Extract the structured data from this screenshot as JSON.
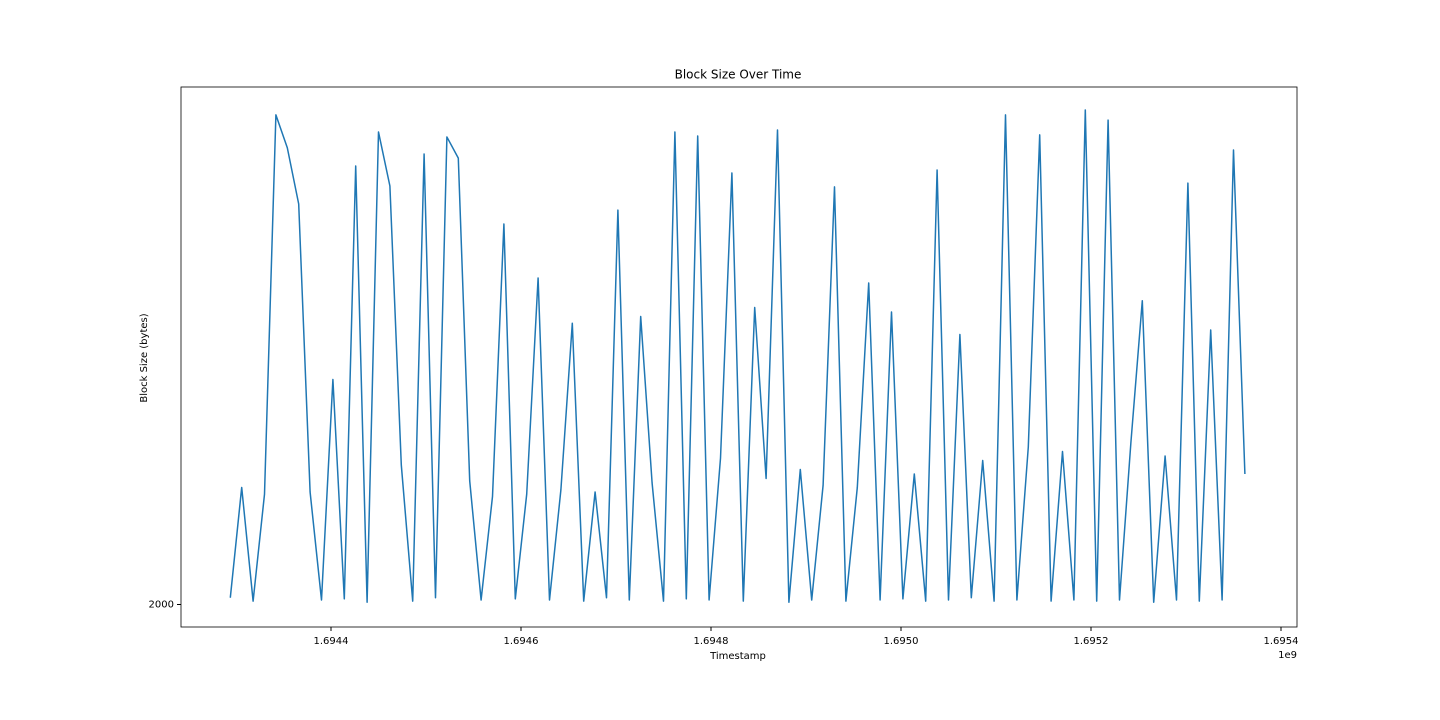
{
  "chart_data": {
    "type": "line",
    "title": "Block Size Over Time",
    "xlabel": "Timestamp",
    "ylabel": "Block Size (bytes)",
    "x_offset_label": "1e9",
    "x": [
      1694294000,
      1694306000,
      1694318000,
      1694330000,
      1694342000,
      1694354000,
      1694366000,
      1694378000,
      1694390000,
      1694402000,
      1694414000,
      1694426000,
      1694438000,
      1694450000,
      1694462000,
      1694474000,
      1694486000,
      1694498000,
      1694510000,
      1694522000,
      1694534000,
      1694546000,
      1694558000,
      1694570000,
      1694582000,
      1694594000,
      1694606000,
      1694618000,
      1694630000,
      1694642000,
      1694654000,
      1694666000,
      1694678000,
      1694690000,
      1694702000,
      1694714000,
      1694726000,
      1694738000,
      1694750000,
      1694762000,
      1694774000,
      1694786000,
      1694798000,
      1694810000,
      1694822000,
      1694834000,
      1694846000,
      1694858000,
      1694870000,
      1694882000,
      1694894000,
      1694906000,
      1694918000,
      1694930000,
      1694942000,
      1694954000,
      1694966000,
      1694978000,
      1694990000,
      1695002000,
      1695014000,
      1695026000,
      1695038000,
      1695050000,
      1695062000,
      1695074000,
      1695086000,
      1695098000,
      1695110000,
      1695122000,
      1695134000,
      1695146000,
      1695158000,
      1695170000,
      1695182000,
      1695194000,
      1695206000,
      1695218000,
      1695230000,
      1695242000,
      1695254000,
      1695266000,
      1695278000,
      1695290000,
      1695302000,
      1695314000,
      1695326000,
      1695338000,
      1695350000,
      1695362000
    ],
    "values": [
      2300,
      7200,
      2150,
      6900,
      23760,
      22300,
      19800,
      7000,
      2200,
      12000,
      2250,
      21490,
      2100,
      23000,
      20600,
      8200,
      2150,
      22020,
      2300,
      22780,
      21840,
      7500,
      2200,
      6800,
      18910,
      2250,
      6900,
      16510,
      2200,
      7100,
      14500,
      2150,
      7000,
      2300,
      19530,
      2200,
      14800,
      7400,
      2150,
      23000,
      2250,
      22820,
      2200,
      8500,
      21180,
      2150,
      15200,
      7600,
      23090,
      2100,
      8000,
      2200,
      7300,
      20560,
      2150,
      7200,
      16290,
      2200,
      15000,
      2250,
      7800,
      2150,
      21310,
      2200,
      14000,
      2300,
      8400,
      2150,
      23760,
      2200,
      9000,
      22870,
      2150,
      8800,
      2200,
      23980,
      2150,
      23530,
      2200,
      9200,
      15500,
      2100,
      8600,
      2200,
      20730,
      2150,
      14200,
      2200,
      22200,
      7800
    ],
    "color": "#1f77b4",
    "xlim": [
      1694242105,
      1695416842
    ],
    "xticks": [
      {
        "value": 1694400000,
        "label": "1.6944"
      },
      {
        "value": 1694600000,
        "label": "1.6946"
      },
      {
        "value": 1694800000,
        "label": "1.6948"
      },
      {
        "value": 1695000000,
        "label": "1.6950"
      },
      {
        "value": 1695200000,
        "label": "1.6952"
      },
      {
        "value": 1695400000,
        "label": "1.6954"
      }
    ],
    "ylim": [
      1000,
      25000
    ],
    "yticks": [
      2000
    ],
    "grid": false
  }
}
